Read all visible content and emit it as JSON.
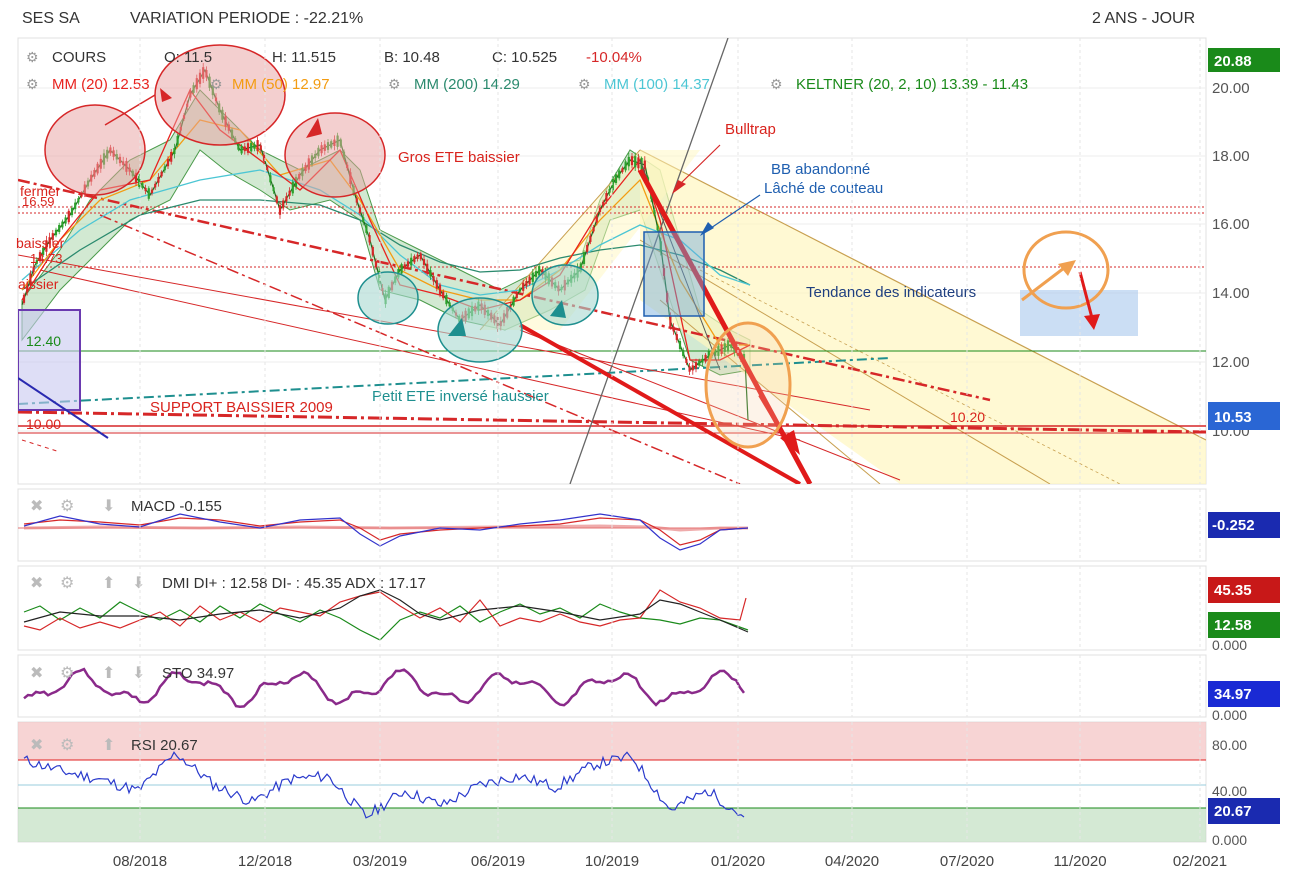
{
  "header": {
    "ticker": "SES SA",
    "variation": "VARIATION PERIODE : -22.21%",
    "period": "2 ANS - JOUR"
  },
  "legend": {
    "cours": "COURS",
    "open": "O: 11.5",
    "high": "H: 11.515",
    "low": "B: 10.48",
    "close": "C: 10.525",
    "change": "-10.04%",
    "mm20": "MM (20) 12.53",
    "mm50": "MM (50) 12.97",
    "mm200": "MM (200) 14.29",
    "mm100": "MM (100) 14.37",
    "keltner": "KELTNER (20, 2, 10) 13.39 - 11.43"
  },
  "colors": {
    "up": "#2ca02c",
    "down": "#d62728",
    "mm20": "#e8231f",
    "mm50": "#f39c12",
    "mm200": "#2b8a6e",
    "mm100": "#4cc6d4",
    "keltner": "#1a8a1a",
    "annotation_red": "#d9231d",
    "annotation_blue": "#1f5fb0",
    "annotation_orange": "#f0a050",
    "macd": "#3333cc",
    "dmi_plus": "#1a8a1a",
    "dmi_minus": "#d62728",
    "adx": "#222222",
    "sto": "#8a2a8a",
    "rsi": "#2a3acc"
  },
  "annotations": {
    "bulltrap": "Bulltrap",
    "bb_abandon": "BB abandonné",
    "lache": "Lâché de couteau",
    "gros_ete": "Gros ETE baissier",
    "tendance": "Tendance des indicateurs",
    "petit_ete": "Petit ETE inversé haussier",
    "support": "SUPPORT BAISSIER 2009",
    "lvl_1240": "12.40",
    "lvl_1000": "10.00",
    "lvl_1020": "10.20",
    "lvl_1659": "16.59",
    "lvl_1473": "14.73",
    "fermer": "fermer",
    "baissier1": "baissier",
    "baissier2": "aissier"
  },
  "chart_data": [
    {
      "type": "candlestick",
      "title": "SES SA",
      "x_ticks": [
        "08/2018",
        "12/2018",
        "03/2019",
        "06/2019",
        "10/2019",
        "01/2020",
        "04/2020",
        "07/2020",
        "11/2020",
        "02/2021"
      ],
      "y_ticks": [
        "20.00",
        "18.00",
        "16.00",
        "14.00",
        "12.00",
        "10.00"
      ],
      "ylim": [
        8.5,
        21
      ],
      "last_close": "10.53",
      "axis_tag_top": "20.88",
      "series": [
        {
          "name": "COURS",
          "x": [
            "06/2018",
            "07/2018",
            "08/2018",
            "09/2018",
            "10/2018",
            "11/2018",
            "12/2018",
            "01/2019",
            "02/2019",
            "03/2019",
            "04/2019",
            "05/2019",
            "06/2019",
            "07/2019",
            "08/2019",
            "09/2019",
            "10/2019",
            "11/2019",
            "12/2019",
            "01/2020"
          ],
          "values": [
            13.2,
            15.8,
            17.0,
            16.6,
            19.8,
            18.6,
            16.0,
            17.4,
            17.8,
            14.0,
            14.6,
            13.2,
            13.5,
            14.0,
            13.8,
            16.0,
            17.6,
            12.0,
            12.4,
            10.53
          ]
        },
        {
          "name": "MM (20)",
          "values": [
            13.5,
            15.5,
            16.8,
            16.8,
            19.0,
            18.8,
            16.6,
            17.2,
            17.6,
            14.6,
            14.4,
            13.6,
            13.5,
            13.9,
            13.9,
            15.6,
            17.3,
            13.0,
            12.5,
            12.53
          ]
        },
        {
          "name": "MM (50)",
          "values": [
            13.8,
            15.0,
            16.2,
            16.9,
            18.0,
            18.6,
            17.2,
            17.0,
            17.4,
            15.8,
            14.8,
            14.0,
            13.6,
            13.7,
            13.8,
            14.8,
            16.4,
            14.5,
            13.2,
            12.97
          ]
        },
        {
          "name": "MM (200)",
          "values": [
            14.6,
            15.2,
            15.8,
            16.2,
            16.6,
            16.8,
            16.8,
            16.7,
            16.7,
            16.4,
            16.1,
            15.7,
            15.3,
            14.9,
            14.6,
            14.4,
            14.4,
            14.4,
            14.3,
            14.29
          ]
        },
        {
          "name": "MM (100)",
          "values": [
            15.0,
            15.6,
            16.4,
            16.8,
            17.0,
            17.2,
            17.0,
            16.8,
            16.8,
            16.0,
            15.4,
            14.6,
            14.0,
            13.8,
            13.7,
            14.0,
            14.8,
            14.9,
            14.5,
            14.37
          ]
        }
      ]
    },
    {
      "type": "line",
      "title": "MACD -0.155",
      "tag": "-0.252",
      "series": [
        {
          "name": "MACD",
          "values": [
            0.05,
            0.02,
            -0.05,
            0.0,
            0.08,
            0.02,
            -0.03,
            0.05,
            0.04,
            -0.18,
            -0.05,
            -0.08,
            -0.02,
            0.03,
            0.0,
            0.07,
            0.12,
            -0.3,
            -0.1,
            -0.155
          ]
        }
      ]
    },
    {
      "type": "line",
      "title": "DMI DI+ : 12.58 DI- : 45.35 ADX : 17.17",
      "tags": [
        "45.35",
        "12.58",
        "0.000"
      ],
      "series": [
        {
          "name": "DI+",
          "values": [
            28,
            35,
            30,
            22,
            32,
            25,
            18,
            27,
            30,
            15,
            22,
            18,
            25,
            28,
            22,
            30,
            35,
            15,
            18,
            12.58
          ]
        },
        {
          "name": "DI-",
          "values": [
            18,
            20,
            22,
            25,
            18,
            22,
            30,
            20,
            18,
            38,
            25,
            30,
            22,
            20,
            28,
            18,
            15,
            40,
            30,
            45.35
          ]
        },
        {
          "name": "ADX",
          "values": [
            25,
            22,
            20,
            18,
            24,
            22,
            20,
            18,
            20,
            35,
            28,
            24,
            20,
            18,
            16,
            20,
            25,
            38,
            30,
            17.17
          ]
        }
      ]
    },
    {
      "type": "line",
      "title": "STO 34.97",
      "tags": [
        "34.97",
        "0.000"
      ],
      "series": [
        {
          "name": "STO",
          "values": [
            70,
            40,
            80,
            30,
            75,
            45,
            20,
            60,
            70,
            15,
            50,
            25,
            60,
            70,
            45,
            80,
            85,
            20,
            50,
            34.97
          ]
        }
      ]
    },
    {
      "type": "line",
      "title": "RSI 20.67",
      "y_ticks": [
        "80.00",
        "40.00",
        "0.000"
      ],
      "tag": "20.67",
      "series": [
        {
          "name": "RSI",
          "values": [
            72,
            62,
            55,
            45,
            78,
            50,
            35,
            55,
            58,
            22,
            45,
            32,
            50,
            58,
            48,
            68,
            75,
            28,
            45,
            20.67
          ]
        }
      ]
    }
  ]
}
